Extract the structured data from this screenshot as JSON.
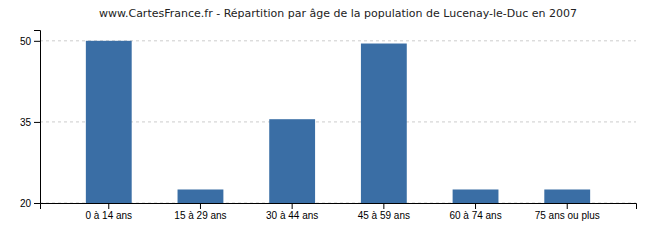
{
  "chart_data": {
    "type": "bar",
    "title": "www.CartesFrance.fr - Répartition par âge de la population de Lucenay-le-Duc en 2007",
    "categories": [
      "0 à 14 ans",
      "15 à 29 ans",
      "30 à 44 ans",
      "45 à 59 ans",
      "60 à 74 ans",
      "75 ans ou plus"
    ],
    "values": [
      50,
      22.5,
      35.5,
      49.5,
      22.5,
      22.5
    ],
    "color": "#3a6ea5",
    "ylim": [
      20,
      52
    ],
    "yticks": [
      20,
      35,
      50
    ],
    "grid": true
  }
}
